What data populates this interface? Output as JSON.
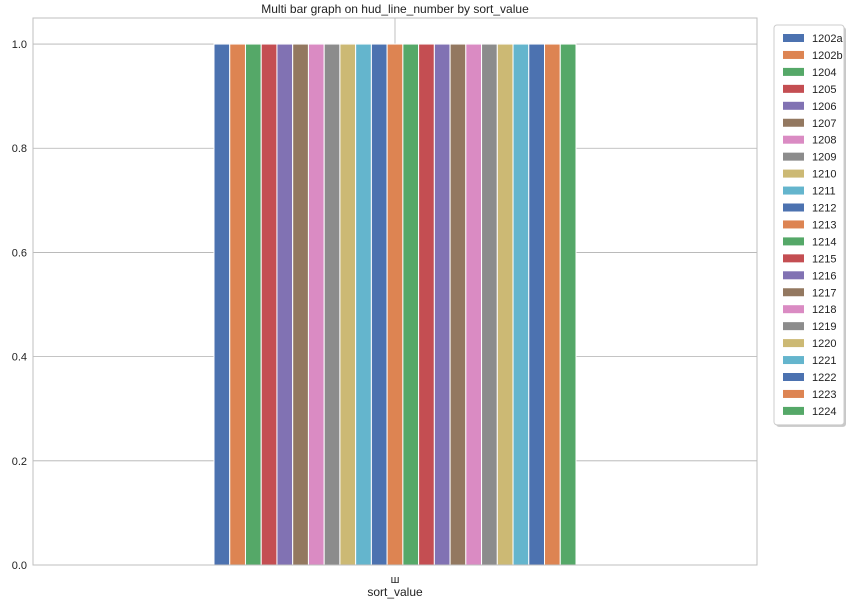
{
  "chart_data": {
    "type": "bar",
    "title": "Multi bar graph on hud_line_number by sort_value",
    "xlabel": "sort_value",
    "ylabel": "",
    "categories": [
      "ш"
    ],
    "ylim": [
      0,
      1.05
    ],
    "yticks": [
      0.0,
      0.2,
      0.4,
      0.6,
      0.8,
      1.0
    ],
    "ytick_labels": [
      "0.0",
      "0.2",
      "0.4",
      "0.6",
      "0.8",
      "1.0"
    ],
    "grid": true,
    "legend_position": "outside-top-right",
    "series": [
      {
        "name": "1202a",
        "color": "#4c72b0",
        "values": [
          1
        ]
      },
      {
        "name": "1202b",
        "color": "#dd8452",
        "values": [
          1
        ]
      },
      {
        "name": "1204",
        "color": "#55a868",
        "values": [
          1
        ]
      },
      {
        "name": "1205",
        "color": "#c44e52",
        "values": [
          1
        ]
      },
      {
        "name": "1206",
        "color": "#8172b3",
        "values": [
          1
        ]
      },
      {
        "name": "1207",
        "color": "#937860",
        "values": [
          1
        ]
      },
      {
        "name": "1208",
        "color": "#da8bc3",
        "values": [
          1
        ]
      },
      {
        "name": "1209",
        "color": "#8c8c8c",
        "values": [
          1
        ]
      },
      {
        "name": "1210",
        "color": "#ccb974",
        "values": [
          1
        ]
      },
      {
        "name": "1211",
        "color": "#64b5cd",
        "values": [
          1
        ]
      },
      {
        "name": "1212",
        "color": "#4c72b0",
        "values": [
          1
        ]
      },
      {
        "name": "1213",
        "color": "#dd8452",
        "values": [
          1
        ]
      },
      {
        "name": "1214",
        "color": "#55a868",
        "values": [
          1
        ]
      },
      {
        "name": "1215",
        "color": "#c44e52",
        "values": [
          1
        ]
      },
      {
        "name": "1216",
        "color": "#8172b3",
        "values": [
          1
        ]
      },
      {
        "name": "1217",
        "color": "#937860",
        "values": [
          1
        ]
      },
      {
        "name": "1218",
        "color": "#da8bc3",
        "values": [
          1
        ]
      },
      {
        "name": "1219",
        "color": "#8c8c8c",
        "values": [
          1
        ]
      },
      {
        "name": "1220",
        "color": "#ccb974",
        "values": [
          1
        ]
      },
      {
        "name": "1221",
        "color": "#64b5cd",
        "values": [
          1
        ]
      },
      {
        "name": "1222",
        "color": "#4c72b0",
        "values": [
          1
        ]
      },
      {
        "name": "1223",
        "color": "#dd8452",
        "values": [
          1
        ]
      },
      {
        "name": "1224",
        "color": "#55a868",
        "values": [
          1
        ]
      }
    ]
  }
}
